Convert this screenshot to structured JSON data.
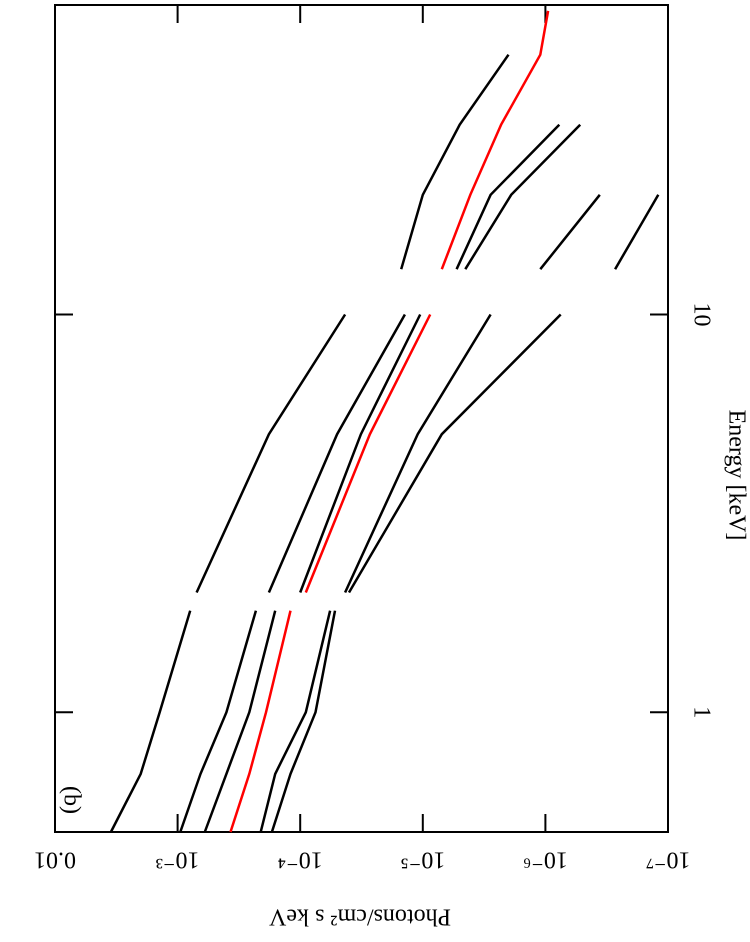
{
  "chart_data": {
    "type": "line",
    "annotation": "(b)",
    "xlabel": "Energy [keV]",
    "ylabel": "Photons/cm² s keV",
    "xscale": "log",
    "yscale": "log",
    "xlim": [
      0.5,
      60
    ],
    "xticks": [
      1,
      10
    ],
    "ylim": [
      1e-07,
      0.01
    ],
    "yticks": [
      {
        "value": 1e-07,
        "label": "10⁻⁷"
      },
      {
        "value": 1e-06,
        "label": "10⁻⁶"
      },
      {
        "value": 1e-05,
        "label": "10⁻⁵"
      },
      {
        "value": 0.0001,
        "label": "10⁻⁴"
      },
      {
        "value": 0.001,
        "label": "10⁻³"
      },
      0.01
    ],
    "x": [
      0.5,
      0.7,
      1,
      1.8,
      1.9,
      2,
      5,
      10,
      11.5,
      13,
      20,
      30,
      45,
      58
    ],
    "series": [
      {
        "color": "#000000",
        "values": [
          0.0035,
          0.002,
          0.0014,
          0.00079,
          null,
          0.0007,
          0.00018,
          4.3e-05,
          null,
          1.5e-05,
          1e-05,
          5e-06,
          2e-06,
          null
        ]
      },
      {
        "color": "#000000",
        "values": [
          0.00095,
          0.00065,
          0.0004,
          0.00023,
          null,
          0.00018,
          5e-05,
          1.4e-05,
          null,
          5.3e-06,
          2.8e-06,
          7.7e-07,
          null,
          null
        ]
      },
      {
        "color": "#000000",
        "values": [
          0.0006,
          0.0004,
          0.00026,
          0.00016,
          null,
          0.0001,
          3.2e-05,
          1.05e-05,
          null,
          4.5e-06,
          1.9e-06,
          5.2e-07,
          null,
          null
        ]
      },
      {
        "color": "#ff0000",
        "values": [
          0.00037,
          0.00026,
          0.00019,
          0.00012,
          null,
          9e-05,
          2.7e-05,
          8.7e-06,
          null,
          7e-06,
          4.1e-06,
          2.3e-06,
          1.1e-06,
          9.5e-07
        ]
      },
      {
        "color": "#000000",
        "values": [
          0.00021,
          0.00016,
          9e-05,
          5.7e-05,
          null,
          4.3e-05,
          1.1e-05,
          2.8e-06,
          null,
          1.1e-06,
          3.6e-07,
          null,
          null,
          null
        ]
      },
      {
        "color": "#000000",
        "values": [
          0.00017,
          0.00012,
          7.5e-05,
          5.2e-05,
          null,
          4e-05,
          7e-06,
          7.5e-07,
          null,
          2.7e-07,
          1.2e-07,
          null,
          null,
          null
        ]
      }
    ]
  }
}
